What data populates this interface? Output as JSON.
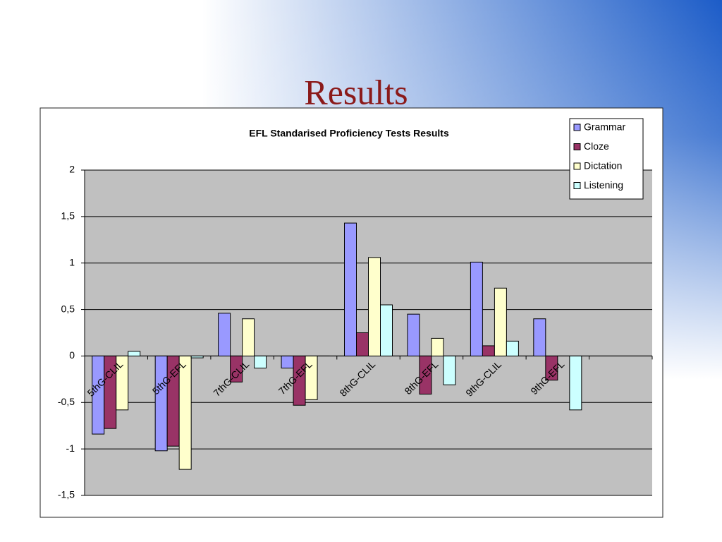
{
  "title": "Results",
  "chart_data": {
    "type": "bar",
    "title": "EFL Standarised Proficiency Tests Results",
    "categories": [
      "5thG-CLIL",
      "5thG-EFL",
      "7thG-CLIL",
      "7thG-EFL",
      "8thG-CLIL",
      "8thG-EFL",
      "9thG-CLIL",
      "9thG-EFL",
      null
    ],
    "series": [
      {
        "name": "Grammar",
        "color": "#9999ff",
        "values": [
          -0.84,
          -1.02,
          0.46,
          -0.13,
          1.43,
          0.45,
          1.01,
          0.4,
          null
        ]
      },
      {
        "name": "Cloze",
        "color": "#993366",
        "values": [
          -0.78,
          -0.97,
          -0.28,
          -0.53,
          0.25,
          -0.41,
          0.11,
          -0.26,
          null
        ]
      },
      {
        "name": "Dictation",
        "color": "#ffffcc",
        "values": [
          -0.58,
          -1.22,
          0.4,
          -0.47,
          1.06,
          0.19,
          0.73,
          0,
          null
        ]
      },
      {
        "name": "Listening",
        "color": "#ccffff",
        "values": [
          0.05,
          -0.02,
          -0.13,
          0,
          0.55,
          -0.31,
          0.16,
          -0.58,
          null
        ]
      }
    ],
    "ylim": [
      -1.5,
      2
    ],
    "yticks": [
      {
        "value": -1.5,
        "label": "-1,5"
      },
      -1,
      {
        "value": -0.5,
        "label": "-0,5"
      },
      0,
      {
        "value": 0.5,
        "label": "0,5"
      },
      1,
      {
        "value": 1.5,
        "label": "1,5"
      },
      2
    ],
    "grid": true,
    "legend": "top-right",
    "plot_background": "#c0c0c0"
  }
}
